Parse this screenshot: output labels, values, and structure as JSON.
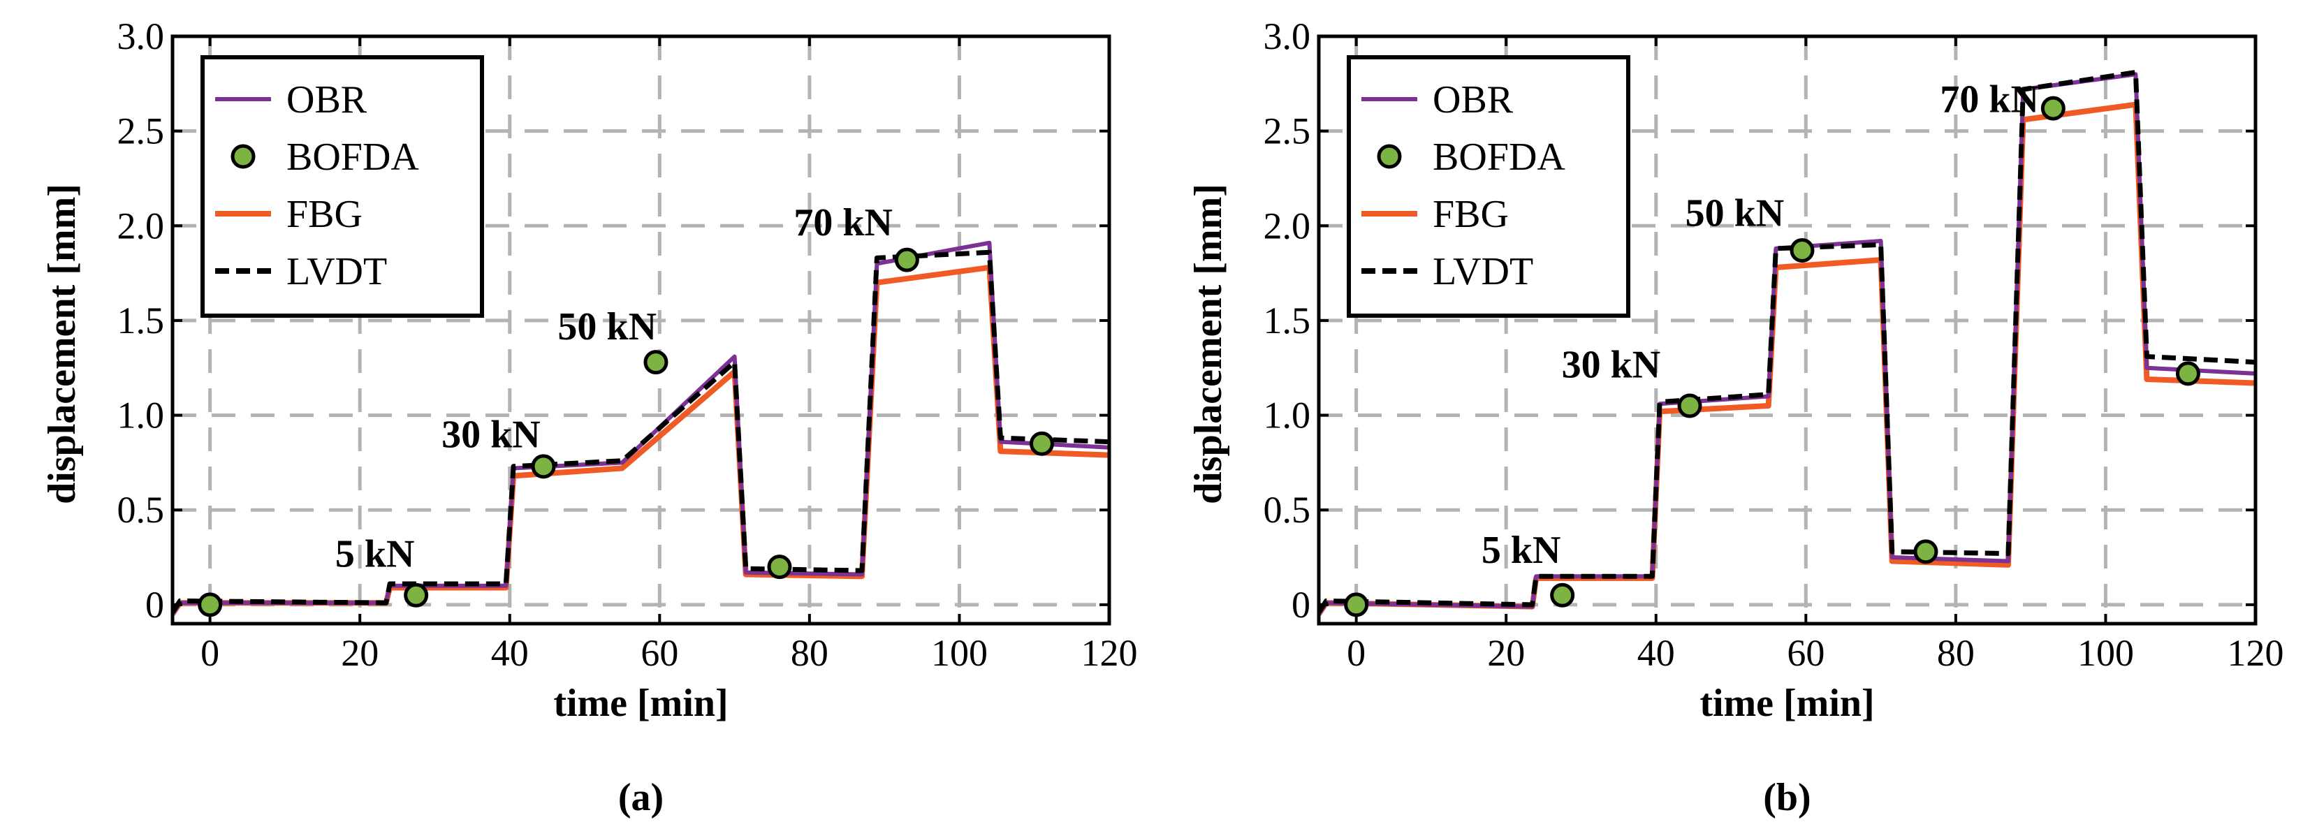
{
  "chart_data": [
    {
      "type": "line",
      "panel_label": "(a)",
      "xlabel": "time [min]",
      "ylabel": "displacement [mm]",
      "xlim": [
        -5,
        120
      ],
      "ylim": [
        -0.1,
        3.0
      ],
      "x_ticks": [
        0,
        20,
        40,
        60,
        80,
        100,
        120
      ],
      "y_ticks": [
        0,
        0.5,
        1.0,
        1.5,
        2.0,
        2.5,
        3.0
      ],
      "x_tick_labels": [
        "0",
        "20",
        "40",
        "60",
        "80",
        "100",
        "120"
      ],
      "y_tick_labels": [
        "0",
        "0.5",
        "1.0",
        "1.5",
        "2.0",
        "2.5",
        "3.0"
      ],
      "grid": true,
      "legend_position": "top-left",
      "legend": [
        "OBR",
        "BOFDA",
        "FBG",
        "LVDT"
      ],
      "colors": {
        "OBR": "#7B3294",
        "BOFDA": "#7CB342",
        "FBG": "#F05A24",
        "LVDT": "#000000"
      },
      "annotations": [
        {
          "text": "5 kN",
          "x": 22,
          "y": 0.2
        },
        {
          "text": "30 kN",
          "x": 37.5,
          "y": 0.83
        },
        {
          "text": "50 kN",
          "x": 53,
          "y": 1.4
        },
        {
          "text": "70 kN",
          "x": 84.5,
          "y": 1.95
        }
      ],
      "series": [
        {
          "name": "OBR",
          "style": "line",
          "x": [
            -5,
            -4,
            23.5,
            24,
            39.5,
            40.5,
            55,
            70,
            71.5,
            87,
            89,
            104,
            105.5,
            120
          ],
          "y": [
            -0.05,
            0.01,
            0.01,
            0.1,
            0.1,
            0.72,
            0.75,
            1.31,
            0.17,
            0.16,
            1.8,
            1.91,
            0.86,
            0.83
          ]
        },
        {
          "name": "FBG",
          "style": "line",
          "x": [
            -5,
            -4,
            23.5,
            24,
            39.5,
            40.5,
            55,
            70,
            71.5,
            87,
            89,
            104,
            105.5,
            120
          ],
          "y": [
            -0.05,
            0.01,
            0.01,
            0.09,
            0.09,
            0.68,
            0.72,
            1.23,
            0.16,
            0.15,
            1.7,
            1.78,
            0.81,
            0.79
          ]
        },
        {
          "name": "LVDT",
          "style": "dashed",
          "x": [
            -5,
            -4,
            23.5,
            24,
            39.5,
            40.5,
            55,
            70,
            71.5,
            87,
            89,
            104,
            105.5,
            120
          ],
          "y": [
            -0.04,
            0.02,
            0.01,
            0.11,
            0.11,
            0.73,
            0.76,
            1.28,
            0.19,
            0.18,
            1.83,
            1.86,
            0.88,
            0.86
          ]
        },
        {
          "name": "BOFDA",
          "style": "marker",
          "x": [
            0,
            27.5,
            44.5,
            59.5,
            76,
            93,
            111
          ],
          "y": [
            0.0,
            0.05,
            0.73,
            1.28,
            0.2,
            1.82,
            0.85
          ]
        }
      ]
    },
    {
      "type": "line",
      "panel_label": "(b)",
      "xlabel": "time [min]",
      "ylabel": "displacement [mm]",
      "xlim": [
        -5,
        120
      ],
      "ylim": [
        -0.1,
        3.0
      ],
      "x_ticks": [
        0,
        20,
        40,
        60,
        80,
        100,
        120
      ],
      "y_ticks": [
        0,
        0.5,
        1.0,
        1.5,
        2.0,
        2.5,
        3.0
      ],
      "x_tick_labels": [
        "0",
        "20",
        "40",
        "60",
        "80",
        "100",
        "120"
      ],
      "y_tick_labels": [
        "0",
        "0.5",
        "1.0",
        "1.5",
        "2.0",
        "2.5",
        "3.0"
      ],
      "grid": true,
      "legend_position": "top-left",
      "legend": [
        "OBR",
        "BOFDA",
        "FBG",
        "LVDT"
      ],
      "colors": {
        "OBR": "#7B3294",
        "BOFDA": "#7CB342",
        "FBG": "#F05A24",
        "LVDT": "#000000"
      },
      "annotations": [
        {
          "text": "5 kN",
          "x": 22,
          "y": 0.22
        },
        {
          "text": "30 kN",
          "x": 34,
          "y": 1.2
        },
        {
          "text": "50 kN",
          "x": 50.5,
          "y": 2.0
        },
        {
          "text": "70 kN",
          "x": 84.5,
          "y": 2.6
        }
      ],
      "series": [
        {
          "name": "OBR",
          "style": "line",
          "x": [
            -5,
            -4,
            23.5,
            24,
            39.5,
            40.5,
            55,
            56,
            70,
            71.5,
            87,
            89,
            104,
            105.5,
            120
          ],
          "y": [
            -0.05,
            0.01,
            -0.01,
            0.15,
            0.15,
            1.06,
            1.1,
            1.88,
            1.92,
            0.25,
            0.23,
            2.72,
            2.8,
            1.25,
            1.22
          ]
        },
        {
          "name": "FBG",
          "style": "line",
          "x": [
            -5,
            -4,
            23.5,
            24,
            39.5,
            40.5,
            55,
            56,
            70,
            71.5,
            87,
            89,
            104,
            105.5,
            120
          ],
          "y": [
            -0.05,
            0.01,
            -0.01,
            0.14,
            0.14,
            1.02,
            1.05,
            1.78,
            1.82,
            0.23,
            0.21,
            2.56,
            2.64,
            1.19,
            1.17
          ]
        },
        {
          "name": "LVDT",
          "style": "dashed",
          "x": [
            -5,
            -4,
            23.5,
            24,
            39.5,
            40.5,
            55,
            56,
            70,
            71.5,
            87,
            89,
            104,
            105.5,
            120
          ],
          "y": [
            -0.04,
            0.02,
            0.0,
            0.15,
            0.15,
            1.07,
            1.11,
            1.88,
            1.9,
            0.28,
            0.27,
            2.72,
            2.81,
            1.31,
            1.28
          ]
        },
        {
          "name": "BOFDA",
          "style": "marker",
          "x": [
            0,
            27.5,
            44.5,
            59.5,
            76,
            93,
            111
          ],
          "y": [
            0.0,
            0.05,
            1.05,
            1.87,
            0.28,
            2.62,
            1.22
          ]
        }
      ]
    }
  ]
}
